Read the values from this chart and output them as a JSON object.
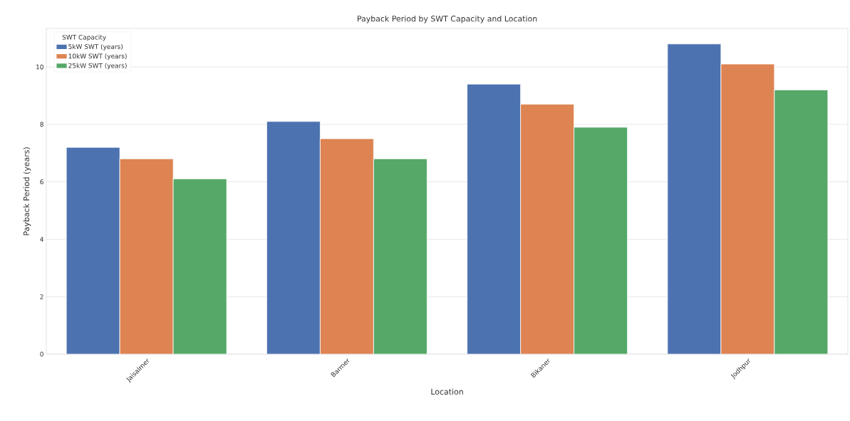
{
  "chart_data": {
    "type": "bar",
    "title": "Payback Period by SWT Capacity and Location",
    "xlabel": "Location",
    "ylabel": "Payback Period (years)",
    "legend_title": "SWT Capacity",
    "categories": [
      "Jaisalmer",
      "Barmer",
      "Bikaner",
      "Jodhpur"
    ],
    "series": [
      {
        "name": "5kW SWT (years)",
        "color": "#4c72b0",
        "values": [
          7.2,
          8.1,
          9.4,
          10.8
        ]
      },
      {
        "name": "10kW SWT (years)",
        "color": "#dd8452",
        "values": [
          6.8,
          7.5,
          8.7,
          10.1
        ]
      },
      {
        "name": "25kW SWT (years)",
        "color": "#55a868",
        "values": [
          6.1,
          6.8,
          7.9,
          9.2
        ]
      }
    ],
    "ylim": [
      0,
      11.34
    ],
    "yticks": [
      0,
      2,
      4,
      6,
      8,
      10
    ],
    "grid": "y",
    "legend": "top left"
  }
}
